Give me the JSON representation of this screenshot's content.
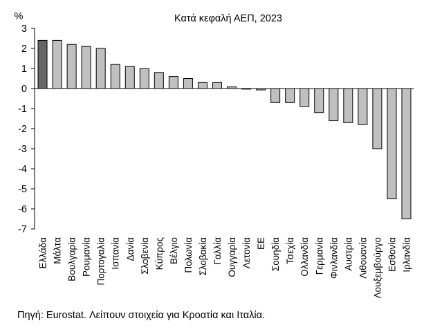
{
  "chart_data": {
    "type": "bar",
    "title": "Κατά κεφαλή ΑΕΠ, 2023",
    "ylabel": "%",
    "xlabel": "",
    "ylim": [
      -7,
      3
    ],
    "yticks": [
      3,
      2,
      1,
      0,
      -1,
      -2,
      -3,
      -4,
      -5,
      -6,
      -7
    ],
    "grid": false,
    "legend": "none",
    "categories": [
      "Ελλάδα",
      "Μάλτα",
      "Βουλγαρία",
      "Ρουμανία",
      "Πορτογαλία",
      "Ισπανία",
      "Δανία",
      "Σλοβενία",
      "Κύπρος",
      "Βέλγιο",
      "Πολωνία",
      "Σλοβακία",
      "Γαλλία",
      "Ουγγαρία",
      "Λετονία",
      "ΕΕ",
      "Σουηδία",
      "Τσεχία",
      "Ολλανδία",
      "Γερμανία",
      "Φινλανδία",
      "Αυστρία",
      "Λιθουανία",
      "Λουξεμβούργο",
      "Εσθονία",
      "Ιρλανδία"
    ],
    "values": [
      2.4,
      2.4,
      2.2,
      2.1,
      2.0,
      1.2,
      1.1,
      1.0,
      0.8,
      0.6,
      0.5,
      0.3,
      0.3,
      0.08,
      -0.03,
      -0.07,
      -0.7,
      -0.7,
      -0.9,
      -1.2,
      -1.6,
      -1.7,
      -1.8,
      -3.0,
      -5.5,
      -6.5
    ],
    "highlight_category": "Ελλάδα",
    "colors": {
      "highlight": "#666666",
      "bar": "#c0c0c0",
      "outline": "#000000",
      "axis": "#000000"
    }
  },
  "footnote": "Πηγή: Eurostat. Λείπουν στοιχεία για Κροατία και Ιταλία."
}
